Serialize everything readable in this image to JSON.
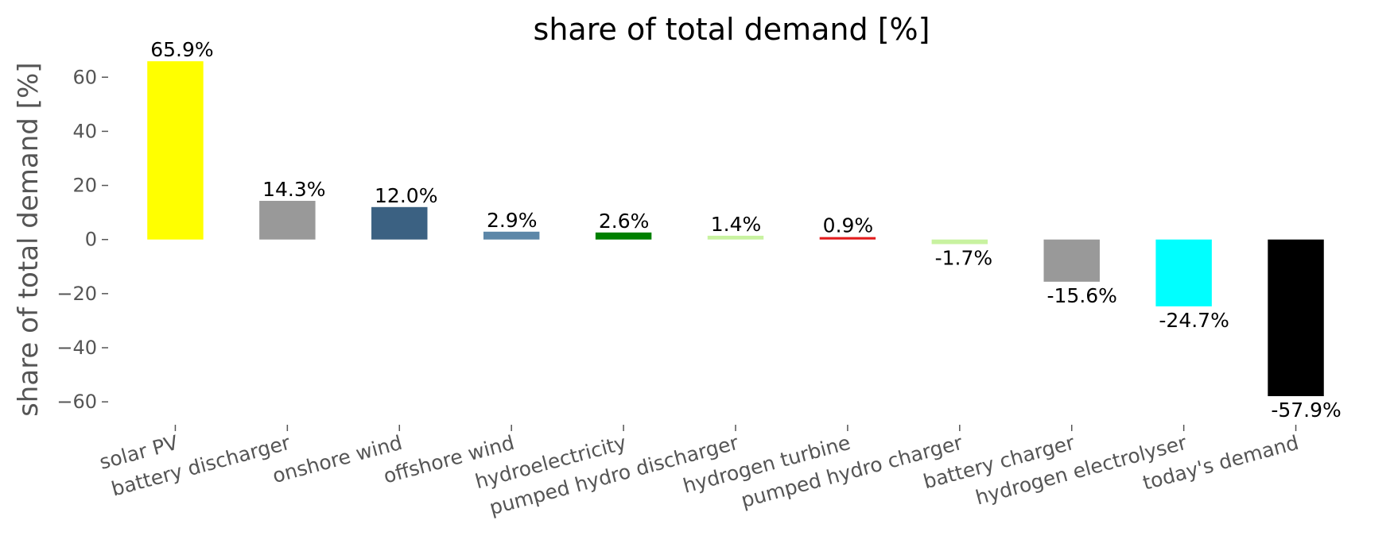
{
  "chart_data": {
    "type": "bar",
    "title": "share of total demand [%]",
    "xlabel": "",
    "ylabel": "share of total demand [%]",
    "ylim": [
      -67,
      68
    ],
    "yticks": [
      60,
      40,
      20,
      0,
      -20,
      -40,
      -60
    ],
    "ytick_labels": [
      "60",
      "40",
      "20",
      "0",
      "−20",
      "−40",
      "−60"
    ],
    "grid": false,
    "categories": [
      "solar PV",
      "battery discharger",
      "onshore wind",
      "offshore wind",
      "hydroelectricity",
      "pumped hydro discharger",
      "hydrogen turbine",
      "pumped hydro charger",
      "battery charger",
      "hydrogen electrolyser",
      "today's demand"
    ],
    "values": [
      65.9,
      14.3,
      12.0,
      2.9,
      2.6,
      1.4,
      0.9,
      -1.7,
      -15.6,
      -24.7,
      -57.9
    ],
    "value_labels": [
      "65.9%",
      "14.3%",
      "12.0%",
      "2.9%",
      "2.6%",
      "1.4%",
      "0.9%",
      "-1.7%",
      "-15.6%",
      "-24.7%",
      "-57.9%"
    ],
    "colors": [
      "#ffff00",
      "#999999",
      "#3b6182",
      "#5c87a8",
      "#008000",
      "#c8f2a0",
      "#e31a1c",
      "#c8f2a0",
      "#999999",
      "#00ffff",
      "#000000"
    ]
  }
}
